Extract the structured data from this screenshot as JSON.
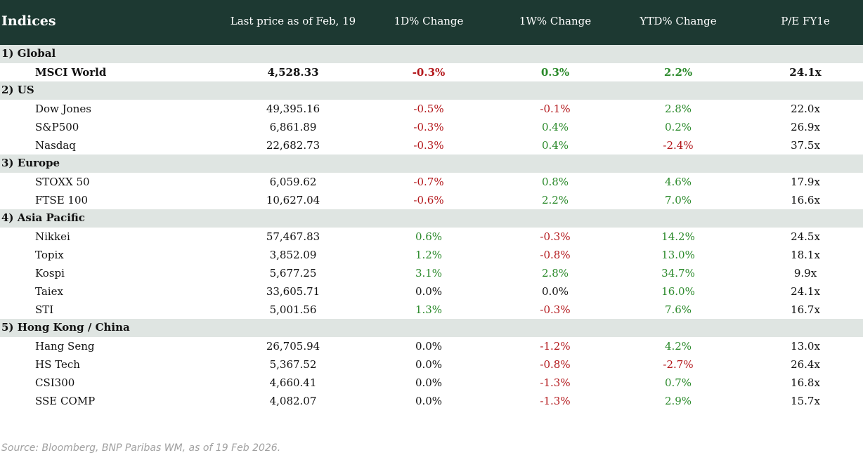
{
  "header": {
    "columns": [
      "Indices",
      "Last price as of Feb, 19",
      "1D% Change",
      "1W% Change",
      "YTD% Change",
      "P/E FY1e"
    ]
  },
  "sections": [
    {
      "title": "1) Global",
      "rows": [
        {
          "cells": [
            "MSCI World",
            "4,528.33",
            "-0.3%",
            "0.3%",
            "2.2%",
            "24.1x"
          ],
          "bold": true
        }
      ]
    },
    {
      "title": "2) US",
      "rows": [
        {
          "cells": [
            "Dow Jones",
            "49,395.16",
            "-0.5%",
            "-0.1%",
            "2.8%",
            "22.0x"
          ]
        },
        {
          "cells": [
            "S&P500",
            "6,861.89",
            "-0.3%",
            "0.4%",
            "0.2%",
            "26.9x"
          ]
        },
        {
          "cells": [
            "Nasdaq",
            "22,682.73",
            "-0.3%",
            "0.4%",
            "-2.4%",
            "37.5x"
          ]
        }
      ]
    },
    {
      "title": "3) Europe",
      "rows": [
        {
          "cells": [
            "STOXX 50",
            "6,059.62",
            "-0.7%",
            "0.8%",
            "4.6%",
            "17.9x"
          ]
        },
        {
          "cells": [
            "FTSE 100",
            "10,627.04",
            "-0.6%",
            "2.2%",
            "7.0%",
            "16.6x"
          ]
        }
      ]
    },
    {
      "title": "4) Asia Pacific",
      "rows": [
        {
          "cells": [
            "Nikkei",
            "57,467.83",
            "0.6%",
            "-0.3%",
            "14.2%",
            "24.5x"
          ]
        },
        {
          "cells": [
            "Topix",
            "3,852.09",
            "1.2%",
            "-0.8%",
            "13.0%",
            "18.1x"
          ]
        },
        {
          "cells": [
            "Kospi",
            "5,677.25",
            "3.1%",
            "2.8%",
            "34.7%",
            "9.9x"
          ]
        },
        {
          "cells": [
            "Taiex",
            "33,605.71",
            "0.0%",
            "0.0%",
            "16.0%",
            "24.1x"
          ]
        },
        {
          "cells": [
            "STI",
            "5,001.56",
            "1.3%",
            "-0.3%",
            "7.6%",
            "16.7x"
          ]
        }
      ]
    },
    {
      "title": "5) Hong Kong / China",
      "rows": [
        {
          "cells": [
            "Hang Seng",
            "26,705.94",
            "0.0%",
            "-1.2%",
            "4.2%",
            "13.0x"
          ]
        },
        {
          "cells": [
            "HS Tech",
            "5,367.52",
            "0.0%",
            "-0.8%",
            "-2.7%",
            "26.4x"
          ]
        },
        {
          "cells": [
            "CSI300",
            "4,660.41",
            "0.0%",
            "-1.3%",
            "0.7%",
            "16.8x"
          ]
        },
        {
          "cells": [
            "SSE COMP",
            "4,082.07",
            "0.0%",
            "-1.3%",
            "2.9%",
            "15.7x"
          ]
        }
      ]
    }
  ],
  "footer": "Source: Bloomberg, BNP Paribas WM, as of 19 Feb 2026."
}
